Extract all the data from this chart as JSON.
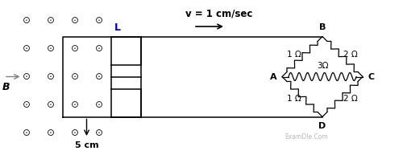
{
  "fig_width": 5.0,
  "fig_height": 2.08,
  "dpi": 100,
  "bg_color": "#ffffff",
  "dot_symbol": "⊙",
  "dot_color": "#111111",
  "dot_fontsize": 8.5,
  "label_L": "L",
  "label_B": "B",
  "label_5cm": "5 cm",
  "label_v": "v = 1 cm/sec",
  "watermark": "ExamDle.Com",
  "xlim": [
    0,
    10
  ],
  "ylim": [
    0,
    4.16
  ]
}
